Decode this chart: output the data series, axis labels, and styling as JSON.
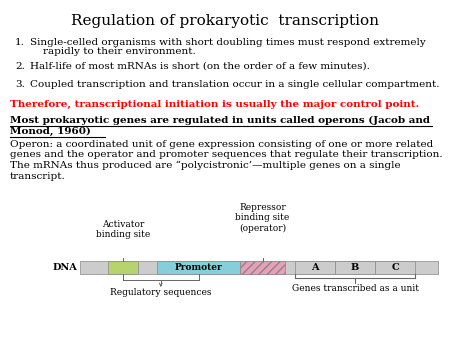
{
  "title": "Regulation of prokaryotic  transcription",
  "title_fontsize": 11,
  "background_color": "#ffffff",
  "items": [
    "Single-celled organisms with short doubling times must respond extremely\n    rapidly to their environment.",
    "Half-life of most mRNAs is short (on the order of a few minutes).",
    "Coupled transcription and translation occur in a single cellular compartment."
  ],
  "red_text": "Therefore, transcriptional initiation is usually the major control point.",
  "bold_line1": "Most prokaryotic genes are regulated in units called operons (Jacob and",
  "bold_line2": "Monod, 1960)",
  "body_text": "Operon: a coordinated unit of gene expression consisting of one or more related\ngenes and the operator and promoter sequences that regulate their transcription.\nThe mRNAs thus produced are “polycistronic’—multiple genes on a single\ntranscript.",
  "dna_label": "DNA",
  "activator_label": "Activator\nbinding site",
  "repressor_label": "Repressor\nbinding site\n(operator)",
  "promoter_label": "Promoter",
  "regulatory_label": "Regulatory sequences",
  "genes_label": "Genes transcribed as a unit",
  "gene_names": [
    "A",
    "B",
    "C"
  ],
  "text_fontsize": 7.5,
  "small_fontsize": 6.5,
  "colors": {
    "activator": "#b5d46e",
    "promoter": "#87cedc",
    "repressor_fill": "#e8a0b8",
    "gene_bg": "#cccccc",
    "dna_bg": "#cccccc",
    "line": "#666666"
  }
}
